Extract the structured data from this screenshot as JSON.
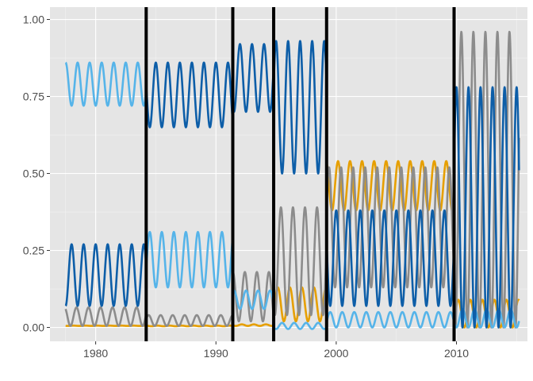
{
  "chart_data": {
    "type": "line",
    "title": "",
    "xlabel": "",
    "ylabel": "",
    "xlim": [
      1976.2,
      1987.0
    ],
    "ylim": [
      -0.045,
      1.04
    ],
    "x_ticks": [
      1980,
      1990,
      2000,
      2010
    ],
    "x_tick_labels": [
      "1980",
      "1990",
      "2000",
      "2010"
    ],
    "y_ticks": [
      0.0,
      0.25,
      0.5,
      0.75,
      1.0
    ],
    "y_tick_labels": [
      "0.00",
      "0.25",
      "0.50",
      "0.75",
      "1.00"
    ],
    "grid": true,
    "legend": "none",
    "background": "#e5e5e5",
    "x_range_actual": [
      1976.2,
      2015.9
    ],
    "breakpoints": [
      1984.2,
      1991.4,
      1994.8,
      1999.2,
      2009.8
    ],
    "series_start": 1977.5,
    "series_end": 2015.2,
    "seasonal_period_years": 1.0,
    "segments": [
      {
        "from": 1977.5,
        "to": 1984.2,
        "ranges": {
          "light_blue": [
            0.72,
            0.86
          ],
          "dark_blue": [
            0.07,
            0.27
          ],
          "gray": [
            0.005,
            0.065
          ],
          "orange": [
            0.005,
            0.006
          ]
        }
      },
      {
        "from": 1984.2,
        "to": 1991.4,
        "ranges": {
          "dark_blue": [
            0.65,
            0.86
          ],
          "light_blue": [
            0.13,
            0.31
          ],
          "gray": [
            0.005,
            0.04
          ],
          "orange": [
            0.004,
            0.006
          ]
        }
      },
      {
        "from": 1991.4,
        "to": 1994.8,
        "ranges": {
          "dark_blue": [
            0.7,
            0.92
          ],
          "gray": [
            0.02,
            0.18
          ],
          "light_blue": [
            0.06,
            0.12
          ],
          "orange": [
            0.005,
            0.01
          ]
        }
      },
      {
        "from": 1994.8,
        "to": 1999.2,
        "ranges": {
          "dark_blue": [
            0.5,
            0.93
          ],
          "gray": [
            0.04,
            0.39
          ],
          "orange": [
            0.02,
            0.13
          ],
          "light_blue": [
            -0.005,
            0.015
          ]
        }
      },
      {
        "from": 1999.2,
        "to": 2009.8,
        "ranges": {
          "orange": [
            0.38,
            0.54
          ],
          "gray": [
            0.13,
            0.52
          ],
          "dark_blue": [
            0.07,
            0.38
          ],
          "light_blue": [
            0.0,
            0.05
          ]
        }
      },
      {
        "from": 2009.8,
        "to": 2015.2,
        "ranges": {
          "gray": [
            0.0,
            0.96
          ],
          "dark_blue": [
            0.0,
            0.78
          ],
          "orange": [
            0.0,
            0.09
          ],
          "light_blue": [
            0.0,
            0.06
          ]
        }
      }
    ],
    "series_colors": {
      "light_blue": "#56b4e9",
      "dark_blue": "#0d5ea8",
      "gray": "#8c8c8c",
      "orange": "#e69f00"
    }
  }
}
